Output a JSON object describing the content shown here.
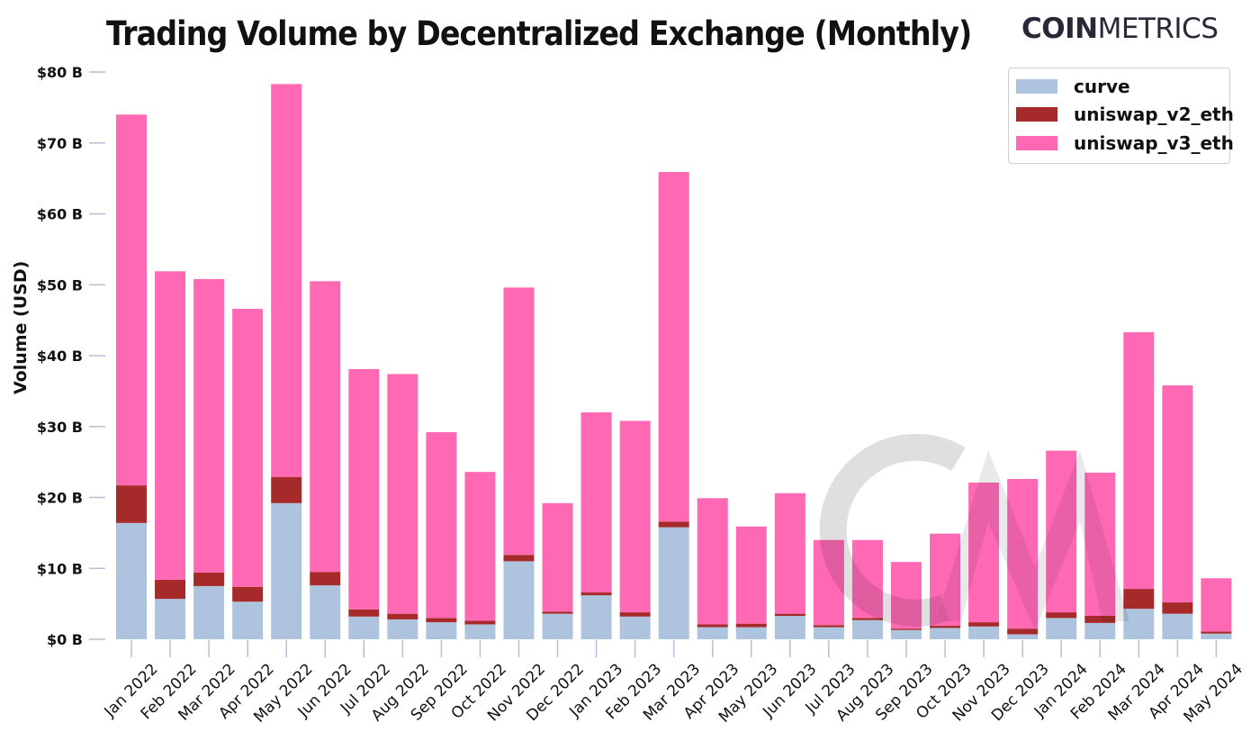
{
  "header": {
    "title": "Trading Volume by Decentralized Exchange (Monthly)",
    "brand_bold": "COIN",
    "brand_light": "METRICS"
  },
  "legend": {
    "items": [
      {
        "label": "curve",
        "color": "#aec3de"
      },
      {
        "label": "uniswap_v2_eth",
        "color": "#a62a2a"
      },
      {
        "label": "uniswap_v3_eth",
        "color": "#ff69b4"
      }
    ]
  },
  "chart_data": {
    "type": "bar",
    "stacked": true,
    "title": "Trading Volume by Decentralized Exchange (Monthly)",
    "xlabel": "",
    "ylabel": "Volume (USD)",
    "ylim": [
      0,
      80
    ],
    "yunit": "USD billions",
    "yticks": [
      0,
      10,
      20,
      30,
      40,
      50,
      60,
      70,
      80
    ],
    "ytick_labels": [
      "$0 B",
      "$10 B",
      "$20 B",
      "$30 B",
      "$40 B",
      "$50 B",
      "$60 B",
      "$70 B",
      "$80 B"
    ],
    "legend_position": "top-right",
    "grid": false,
    "categories": [
      "Jan 2022",
      "Feb 2022",
      "Mar 2022",
      "Apr 2022",
      "May 2022",
      "Jun 2022",
      "Jul 2022",
      "Aug 2022",
      "Sep 2022",
      "Oct 2022",
      "Nov 2022",
      "Dec 2022",
      "Jan 2023",
      "Feb 2023",
      "Mar 2023",
      "Apr 2023",
      "May 2023",
      "Jun 2023",
      "Jul 2023",
      "Aug 2023",
      "Sep 2023",
      "Oct 2023",
      "Nov 2023",
      "Dec 2023",
      "Jan 2024",
      "Feb 2024",
      "Mar 2024",
      "Apr 2024",
      "May 2024"
    ],
    "series": [
      {
        "name": "curve",
        "color": "#aec3de",
        "values": [
          16.4,
          5.7,
          7.5,
          5.3,
          19.2,
          7.6,
          3.2,
          2.8,
          2.4,
          2.1,
          11.0,
          3.6,
          6.2,
          3.2,
          15.8,
          1.7,
          1.7,
          3.3,
          1.7,
          2.7,
          1.3,
          1.6,
          1.8,
          0.7,
          3.0,
          2.3,
          4.3,
          3.6,
          0.8
        ]
      },
      {
        "name": "uniswap_v2_eth",
        "color": "#a62a2a",
        "values": [
          5.3,
          2.7,
          1.9,
          2.1,
          3.7,
          1.9,
          1.0,
          0.8,
          0.6,
          0.5,
          0.9,
          0.3,
          0.4,
          0.6,
          0.8,
          0.4,
          0.5,
          0.3,
          0.3,
          0.3,
          0.2,
          0.3,
          0.6,
          0.8,
          0.8,
          1.0,
          2.8,
          1.6,
          0.3
        ]
      },
      {
        "name": "uniswap_v3_eth",
        "color": "#ff69b4",
        "values": [
          52.3,
          43.5,
          41.4,
          39.2,
          55.4,
          41.0,
          33.9,
          33.8,
          26.2,
          21.0,
          37.7,
          15.3,
          25.4,
          27.0,
          49.3,
          17.8,
          13.7,
          17.0,
          12.0,
          11.0,
          9.4,
          13.0,
          19.7,
          21.1,
          22.8,
          20.2,
          36.2,
          30.6,
          7.5
        ]
      }
    ],
    "watermark": "CM"
  }
}
